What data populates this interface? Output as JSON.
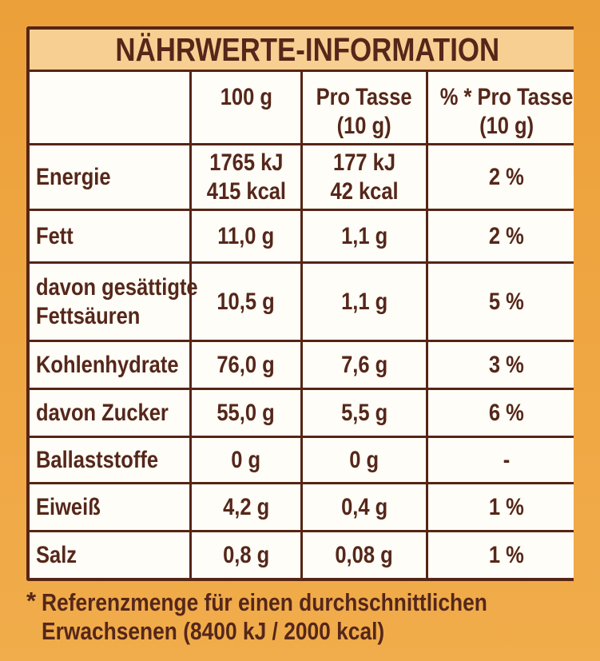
{
  "colors": {
    "background_orange": "#efa743",
    "title_band": "#f8cf92",
    "table_background": "#fffdf7",
    "text_brown": "#55271a",
    "border_brown": "#562515"
  },
  "table": {
    "title": "NÄHRWERTE-INFORMATION",
    "columns": [
      "",
      "100 g",
      "Pro Tasse\n(10 g)",
      "% * Pro Tasse\n(10 g)"
    ],
    "rows": [
      {
        "label": "Energie",
        "per100": "1765 kJ\n415 kcal",
        "per_cup": "177 kJ\n42 kcal",
        "pct": "2 %"
      },
      {
        "label": "Fett",
        "per100": "11,0 g",
        "per_cup": "1,1 g",
        "pct": "2 %"
      },
      {
        "label": "davon gesättigte\nFettsäuren",
        "per100": "10,5 g",
        "per_cup": "1,1 g",
        "pct": "5 %"
      },
      {
        "label": "Kohlenhydrate",
        "per100": "76,0 g",
        "per_cup": "7,6 g",
        "pct": "3 %"
      },
      {
        "label": "davon Zucker",
        "per100": "55,0 g",
        "per_cup": "5,5 g",
        "pct": "6 %"
      },
      {
        "label": "Ballaststoffe",
        "per100": "0 g",
        "per_cup": "0 g",
        "pct": "-"
      },
      {
        "label": "Eiweiß",
        "per100": "4,2 g",
        "per_cup": "0,4 g",
        "pct": "1 %"
      },
      {
        "label": "Salz",
        "per100": "0,8 g",
        "per_cup": "0,08 g",
        "pct": "1 %"
      }
    ]
  },
  "footnote": {
    "marker": "*",
    "text": "Referenzmenge für einen durchschnittlichen\nErwachsenen (8400 kJ / 2000 kcal)"
  }
}
